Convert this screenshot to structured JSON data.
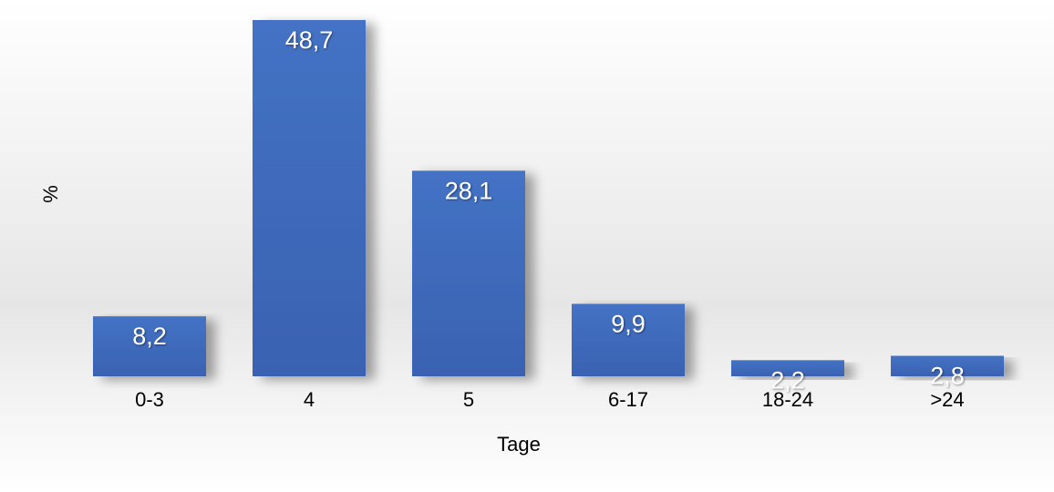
{
  "chart_data": {
    "type": "bar",
    "categories": [
      "0-3",
      "4",
      "5",
      "6-17",
      "18-24",
      ">24"
    ],
    "values": [
      8.2,
      48.7,
      28.1,
      9.9,
      2.2,
      2.8
    ],
    "value_labels": [
      "8,2",
      "48,7",
      "28,1",
      "9,9",
      "2,2",
      "2,8"
    ],
    "title": "",
    "xlabel": "Tage",
    "ylabel": "%",
    "ylim": [
      0,
      50
    ],
    "grid": false,
    "legend": "none",
    "bar_color": "#4472c4",
    "label_color": "#ffffff"
  }
}
